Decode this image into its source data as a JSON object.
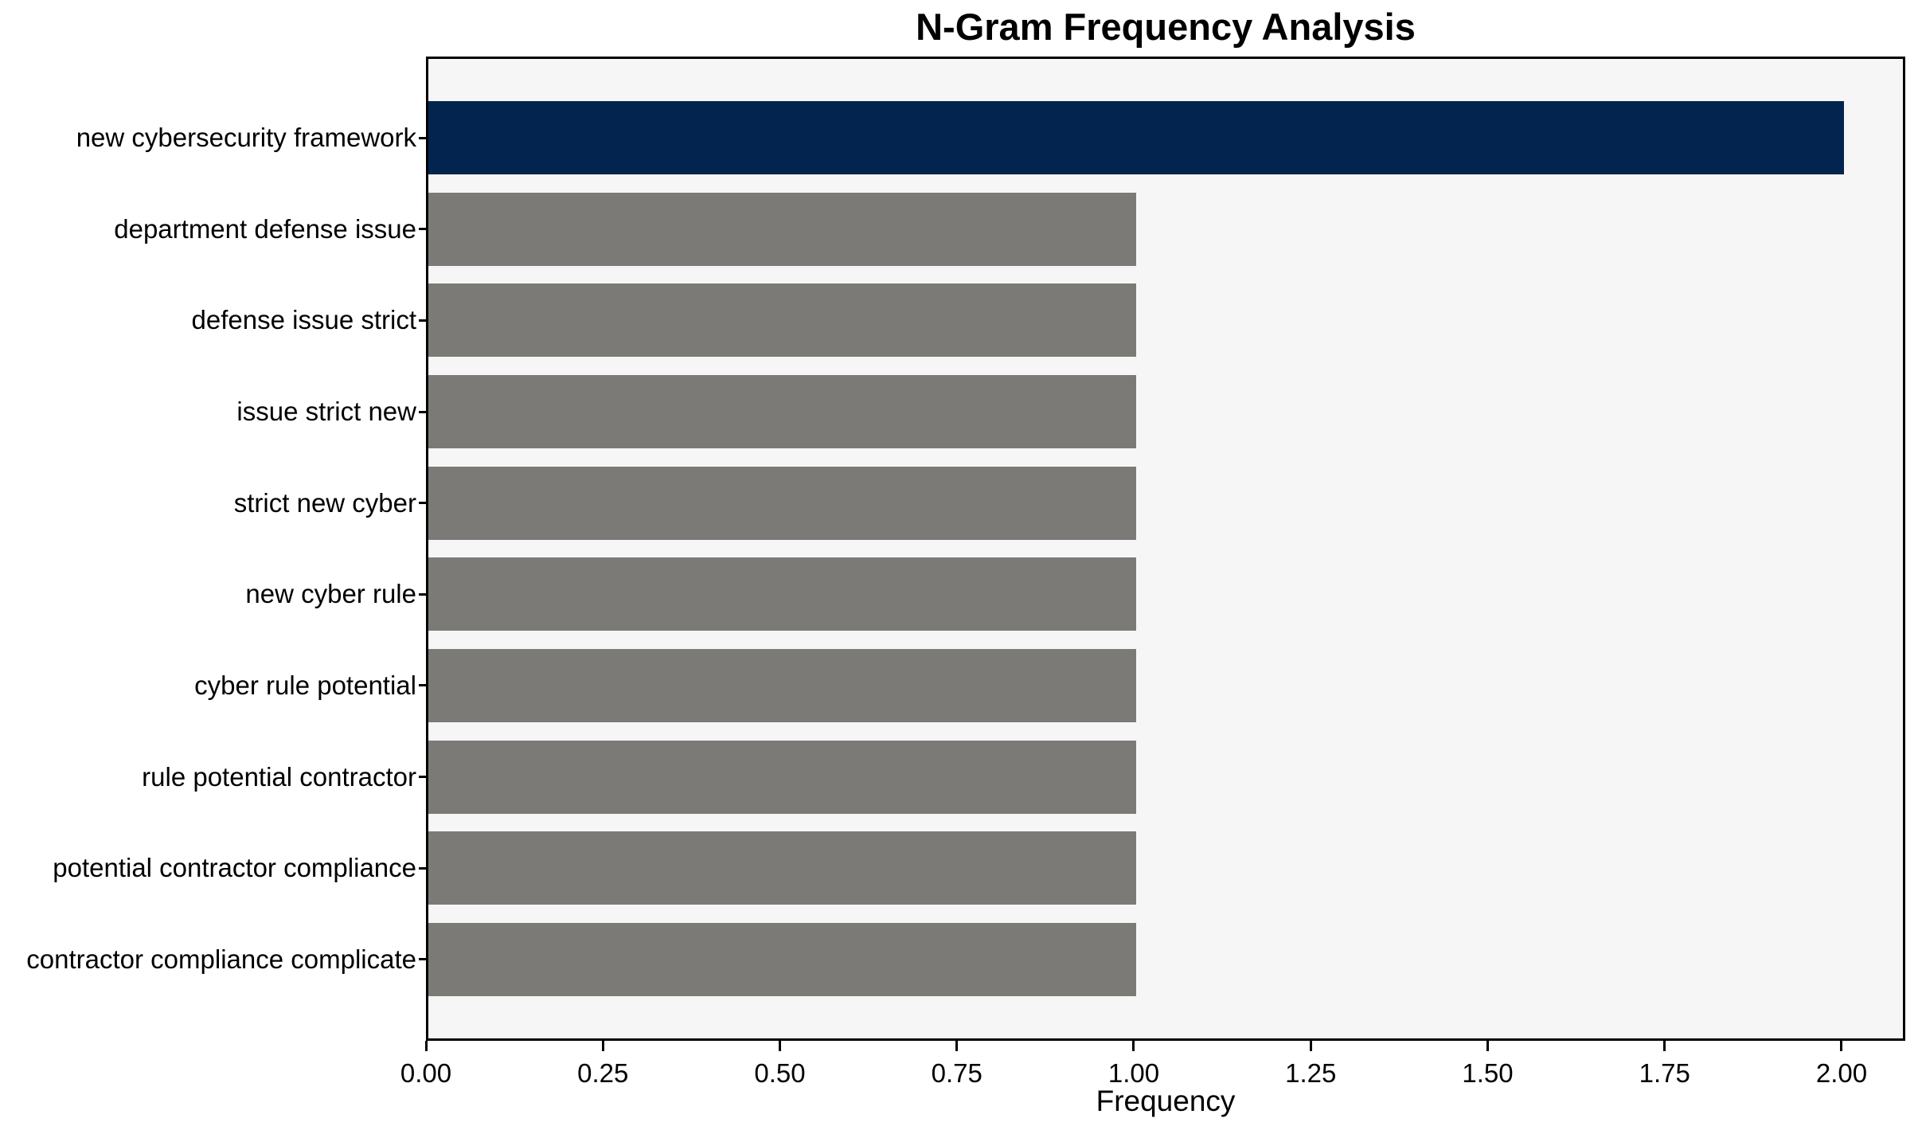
{
  "figure": {
    "background": "#ffffff",
    "plot_background": "#f7f6f6",
    "spine_color": "#000000",
    "text_color": "#000000"
  },
  "chart_data": {
    "type": "bar",
    "orientation": "horizontal",
    "title": "N-Gram Frequency Analysis",
    "xlabel": "Frequency",
    "ylabel": "",
    "grid": false,
    "legend": null,
    "categories": [
      "new cybersecurity framework",
      "department defense issue",
      "defense issue strict",
      "issue strict new",
      "strict new cyber",
      "new cyber rule",
      "cyber rule potential",
      "rule potential contractor",
      "potential contractor compliance",
      "contractor compliance complicate"
    ],
    "values": [
      2,
      1,
      1,
      1,
      1,
      1,
      1,
      1,
      1,
      1
    ],
    "highlight_color": "#02244e",
    "default_bar_color": "#7b7a77",
    "bar_colors": [
      "#02244e",
      "#7b7a77",
      "#7b7a77",
      "#7b7a77",
      "#7b7a77",
      "#7b7a77",
      "#7b7a77",
      "#7b7a77",
      "#7b7a77",
      "#7b7a77"
    ],
    "xlim": [
      0,
      2.09
    ],
    "x_ticks": [
      {
        "value": 0.0,
        "label": "0.00"
      },
      {
        "value": 0.25,
        "label": "0.25"
      },
      {
        "value": 0.5,
        "label": "0.50"
      },
      {
        "value": 0.75,
        "label": "0.75"
      },
      {
        "value": 1.0,
        "label": "1.00"
      },
      {
        "value": 1.25,
        "label": "1.25"
      },
      {
        "value": 1.5,
        "label": "1.50"
      },
      {
        "value": 1.75,
        "label": "1.75"
      },
      {
        "value": 2.0,
        "label": "2.00"
      }
    ]
  }
}
